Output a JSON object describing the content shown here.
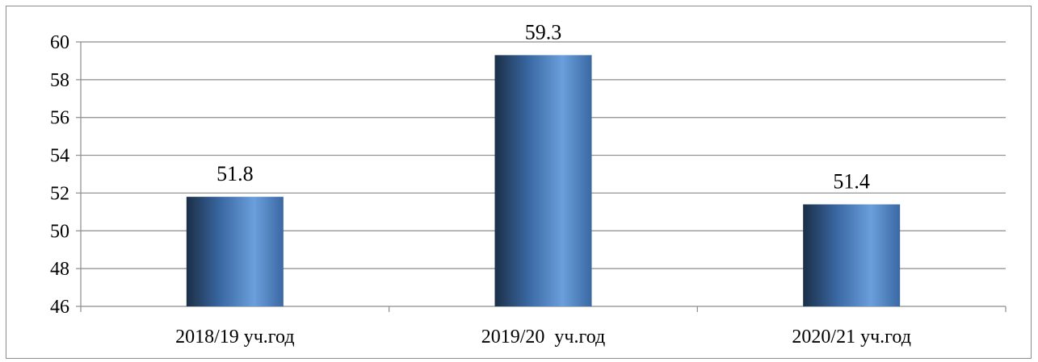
{
  "chart_data": {
    "type": "bar",
    "categories": [
      "2018/19 уч.год",
      "2019/20  уч.год",
      "2020/21 уч.год"
    ],
    "values": [
      51.8,
      59.3,
      51.4
    ],
    "data_labels": [
      "51.8",
      "59.3",
      "51.4"
    ],
    "ylim": [
      46,
      60
    ],
    "yticks": [
      46,
      48,
      50,
      52,
      54,
      56,
      58,
      60
    ],
    "title": "",
    "xlabel": "",
    "ylabel": "",
    "grid": true,
    "legend": "none",
    "colors": {
      "bar_dark": "#1b2f47",
      "bar_mid": "#3a68a3",
      "bar_light": "#6a9fdc",
      "grid": "#8c8c8c",
      "axis": "#8c8c8c"
    }
  }
}
